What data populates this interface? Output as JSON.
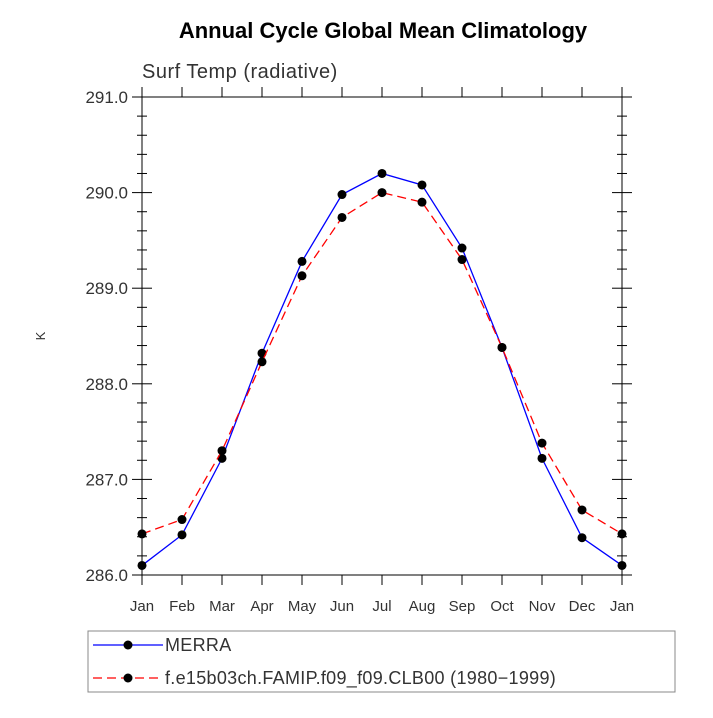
{
  "chart_data": {
    "type": "line",
    "title": "Annual Cycle Global Mean Climatology",
    "subtitle": "Surf Temp (radiative)",
    "xlabel": "",
    "ylabel": "K",
    "ylim": [
      286.0,
      291.0
    ],
    "y_ticks": [
      "286.0",
      "287.0",
      "288.0",
      "289.0",
      "290.0",
      "291.0"
    ],
    "categories": [
      "Jan",
      "Feb",
      "Mar",
      "Apr",
      "May",
      "Jun",
      "Jul",
      "Aug",
      "Sep",
      "Oct",
      "Nov",
      "Dec",
      "Jan"
    ],
    "grid": false,
    "legend_position": "bottom",
    "series": [
      {
        "name": "MERRA",
        "color": "#0000ff",
        "dash": "solid",
        "marker": "filled-circle",
        "values": [
          286.1,
          286.42,
          287.22,
          288.32,
          289.28,
          289.98,
          290.2,
          290.08,
          289.42,
          288.38,
          287.22,
          286.39,
          286.1
        ]
      },
      {
        "name": "f.e15b03ch.FAMIP.f09_f09.CLB00 (1980−1999)",
        "color": "#ff0000",
        "dash": "dashed",
        "marker": "filled-circle",
        "values": [
          286.43,
          286.58,
          287.3,
          288.23,
          289.13,
          289.74,
          290.0,
          289.9,
          289.3,
          288.38,
          287.38,
          286.68,
          286.43
        ]
      }
    ]
  }
}
